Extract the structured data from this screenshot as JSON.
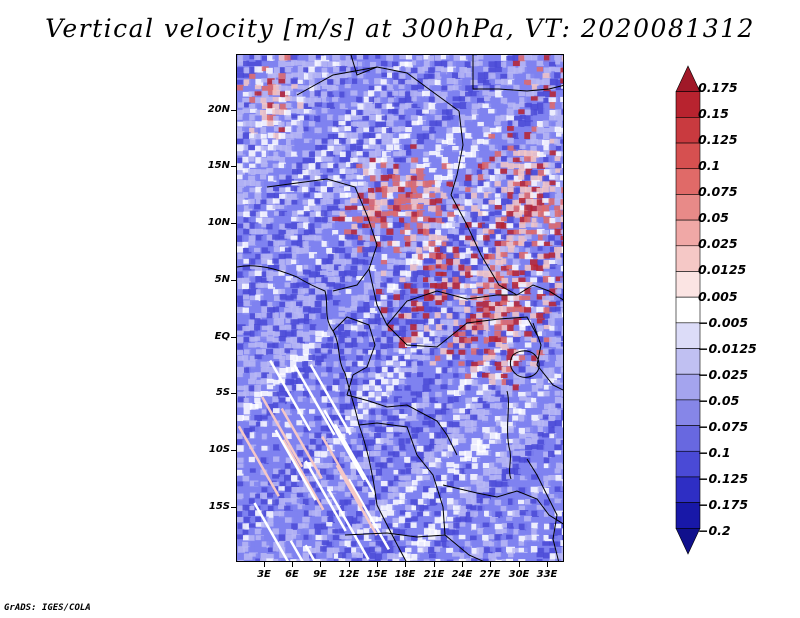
{
  "title": "Vertical velocity [m/s] at 300hPa, VT: 2020081312",
  "credit": "GrADS: IGES/COLA",
  "map": {
    "lat_labels": [
      "20N",
      "15N",
      "10N",
      "5N",
      "EQ",
      "5S",
      "10S",
      "15S"
    ],
    "lon_labels": [
      "3E",
      "6E",
      "9E",
      "12E",
      "15E",
      "18E",
      "21E",
      "24E",
      "27E",
      "30E",
      "33E"
    ]
  },
  "colorbar": {
    "labels": [
      "0.175",
      "0.15",
      "0.125",
      "0.1",
      "0.075",
      "0.05",
      "0.025",
      "0.0125",
      "0.005",
      "−0.005",
      "−0.0125",
      "−0.025",
      "−0.05",
      "−0.075",
      "−0.1",
      "−0.125",
      "−0.175",
      "−0.2"
    ],
    "colors": [
      "#a01828",
      "#b8232f",
      "#c93a3f",
      "#d65050",
      "#e06a68",
      "#e88a88",
      "#f0a8a6",
      "#f5c8c6",
      "#fbe4e3",
      "#ffffff",
      "#dcdcf8",
      "#c0c0f2",
      "#a4a4ee",
      "#8686e8",
      "#6868e0",
      "#4a4ad6",
      "#2e2ec4",
      "#1818a8",
      "#10108c"
    ]
  },
  "palette": {
    "background": "#7f82f0",
    "blue_dark": "#4a4ad6",
    "blue_light": "#b8b8f4",
    "red_dark": "#b8232f",
    "red_mid": "#e06a68",
    "red_light": "#f5c8c6",
    "white": "#ffffff"
  }
}
